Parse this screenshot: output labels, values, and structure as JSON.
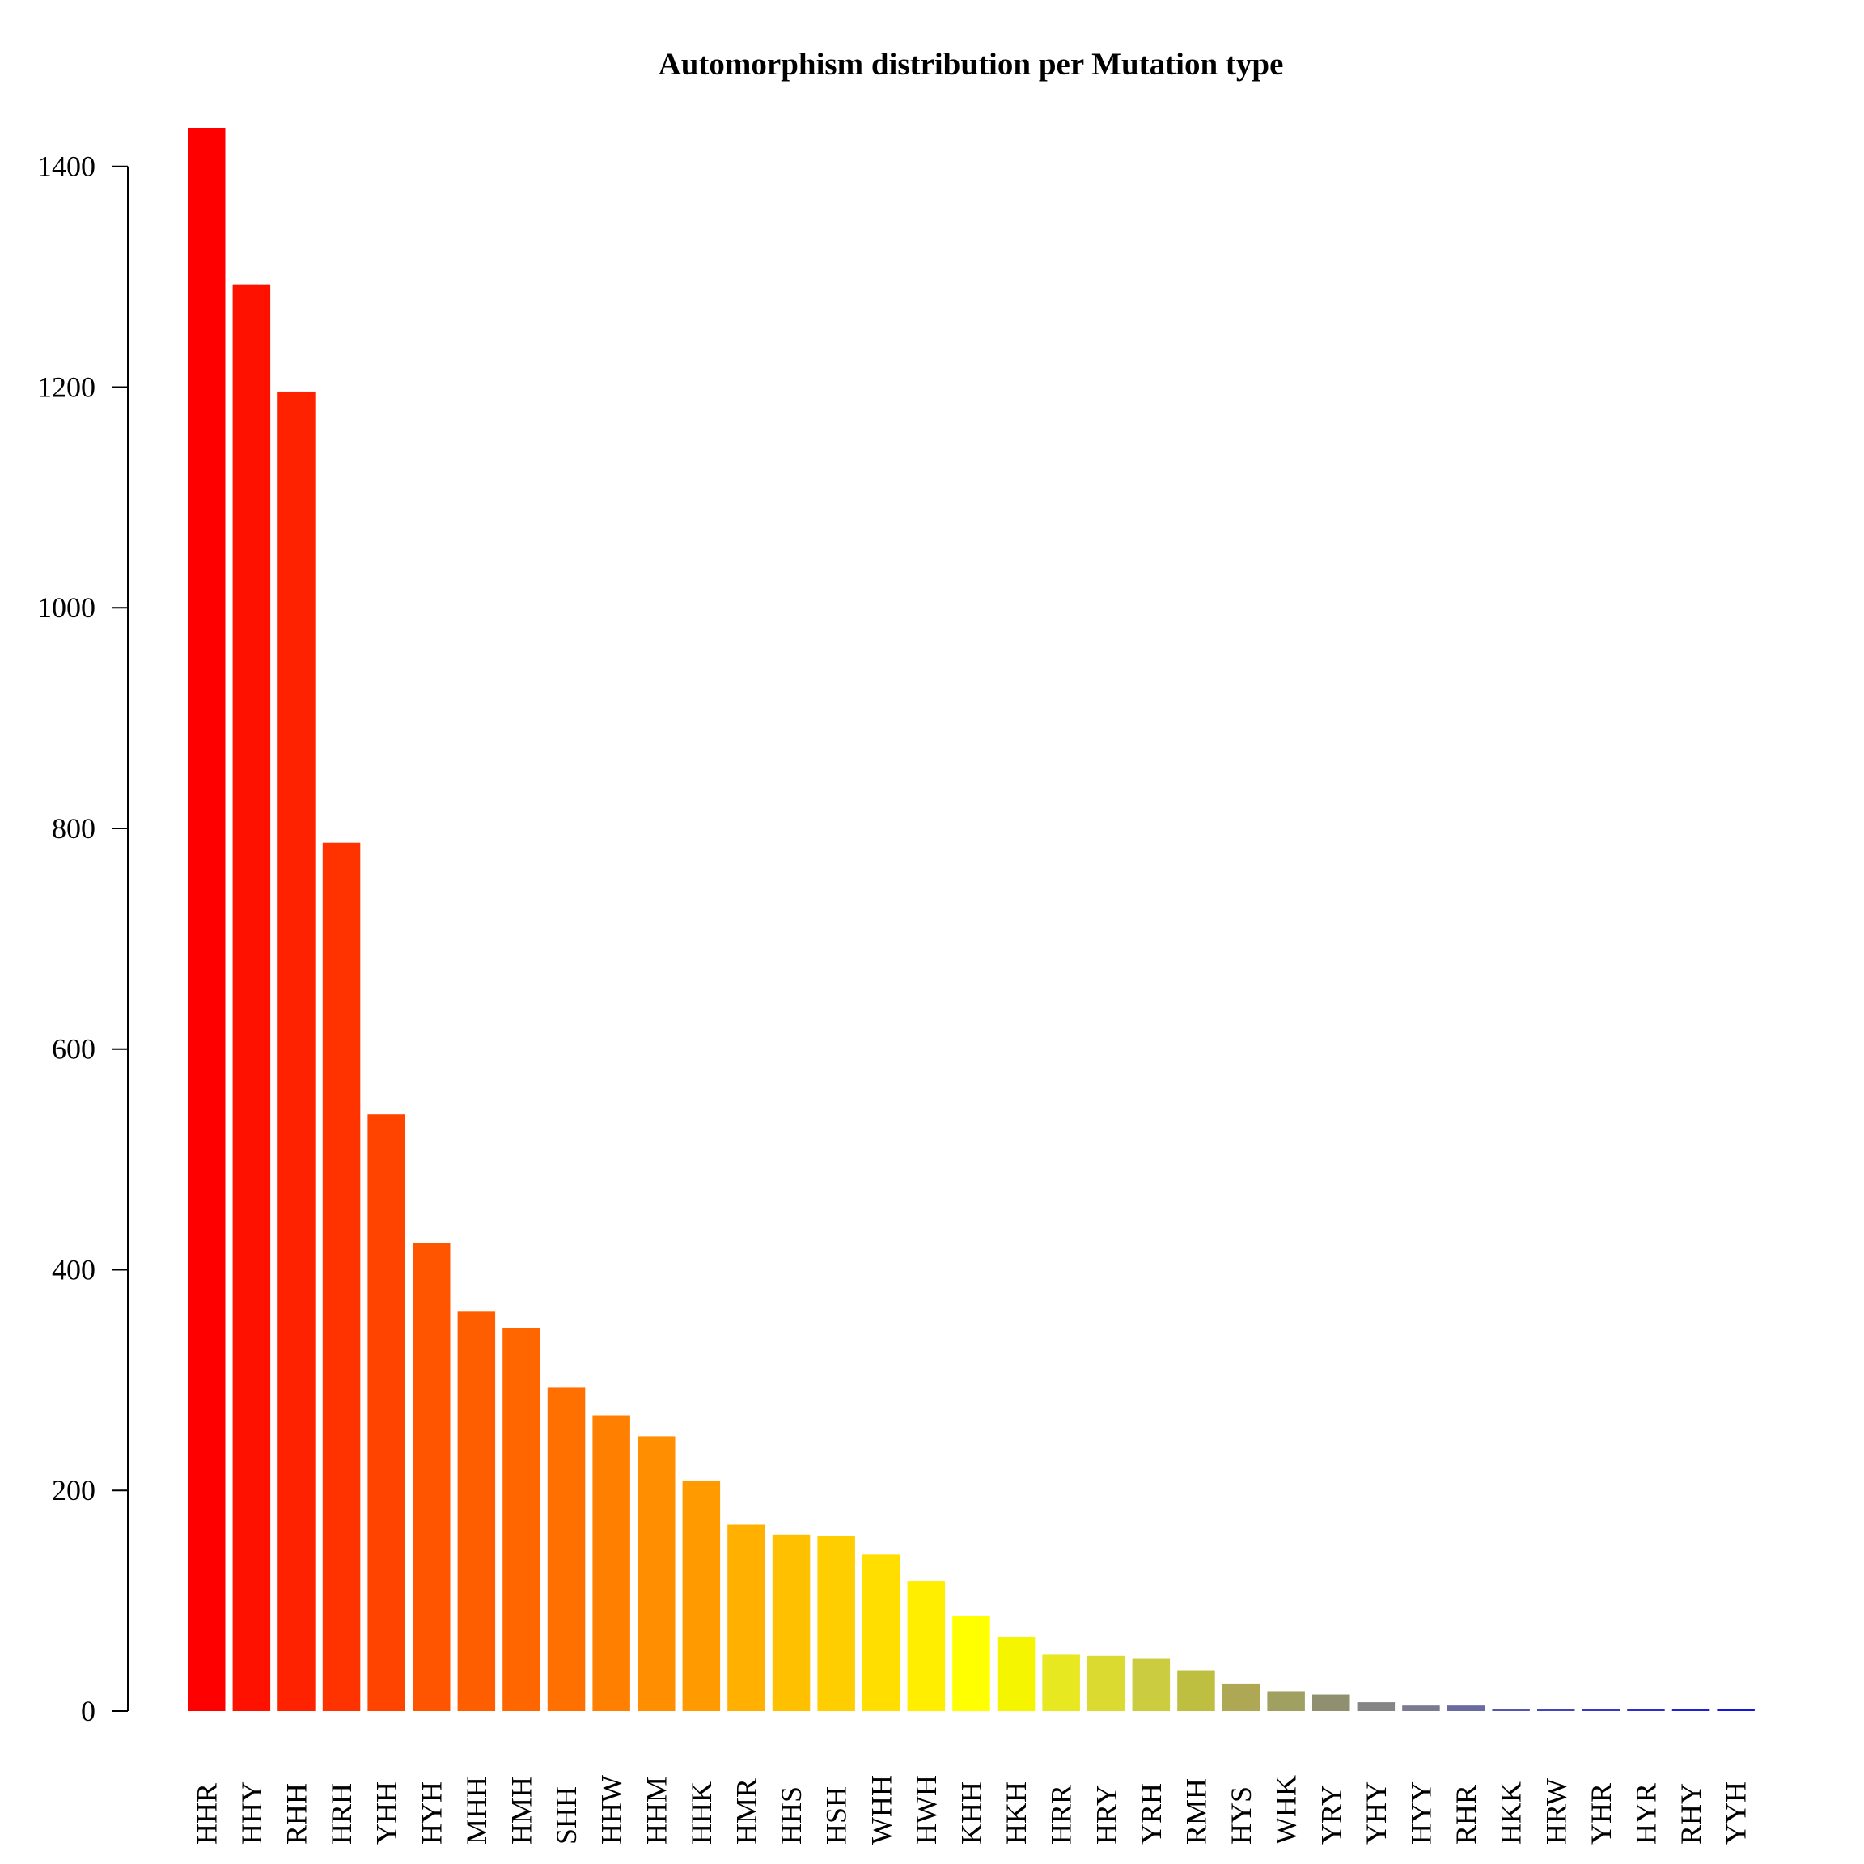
{
  "chart_data": {
    "type": "bar",
    "title": "Automorphism distribution per Mutation type",
    "xlabel": "",
    "ylabel": "",
    "ylim": [
      0,
      1435
    ],
    "yticks": [
      0,
      200,
      400,
      600,
      800,
      1000,
      1200,
      1400
    ],
    "grid": false,
    "legend": "none",
    "categories": [
      "HHR",
      "HHY",
      "RHH",
      "HRH",
      "YHH",
      "HYH",
      "MHH",
      "HMH",
      "SHH",
      "HHW",
      "HHM",
      "HHK",
      "HMR",
      "HHS",
      "HSH",
      "WHH",
      "HWH",
      "KHH",
      "HKH",
      "HRR",
      "HRY",
      "YRH",
      "RMH",
      "HYS",
      "WHK",
      "YRY",
      "YHY",
      "HYY",
      "RHR",
      "HKK",
      "HRW",
      "YHR",
      "HYR",
      "RHY",
      "YYH"
    ],
    "values": [
      1435,
      1293,
      1196,
      787,
      541,
      424,
      362,
      347,
      293,
      268,
      249,
      209,
      169,
      160,
      159,
      142,
      118,
      86,
      67,
      51,
      50,
      48,
      37,
      25,
      18,
      15,
      8,
      5,
      5,
      2,
      2,
      2,
      1,
      1,
      1
    ],
    "colors": [
      "#FF0000",
      "#FF1100",
      "#FF2200",
      "#FF3300",
      "#FF4400",
      "#FF5500",
      "#FF5E00",
      "#FF6600",
      "#FF7000",
      "#FF8000",
      "#FF8E00",
      "#FF9A00",
      "#FFB000",
      "#FFC000",
      "#FFCE00",
      "#FFDE00",
      "#FFEE00",
      "#FFFF00",
      "#F5F500",
      "#E8E820",
      "#DADA30",
      "#CCCC40",
      "#BEBE40",
      "#AEA855",
      "#A0A060",
      "#909070",
      "#858585",
      "#7A7A90",
      "#6A6AA0",
      "#5555B0",
      "#4444BB",
      "#3838C5",
      "#2C2CCF",
      "#2020D8",
      "#1515E0"
    ]
  }
}
